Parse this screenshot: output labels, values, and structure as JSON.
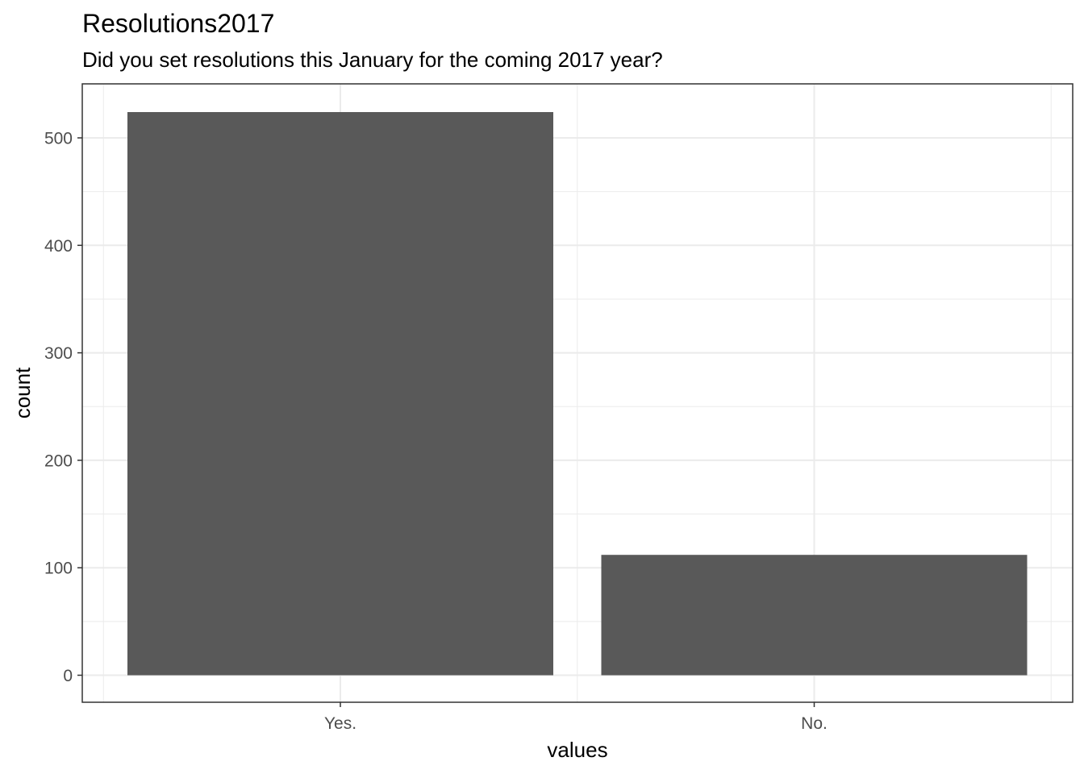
{
  "chart_data": {
    "type": "bar",
    "title": "Resolutions2017",
    "subtitle": "Did you set resolutions this January for the coming 2017 year?",
    "xlabel": "values",
    "ylabel": "count",
    "categories": [
      "Yes.",
      "No."
    ],
    "values": [
      524,
      112
    ],
    "ylim": [
      0,
      550
    ],
    "yticks": [
      0,
      100,
      200,
      300,
      400,
      500
    ],
    "grid": true,
    "colors": {
      "bar": "#595959",
      "grid": "#ebebeb",
      "panel_border": "#333333",
      "tick_label": "#4d4d4d"
    }
  }
}
